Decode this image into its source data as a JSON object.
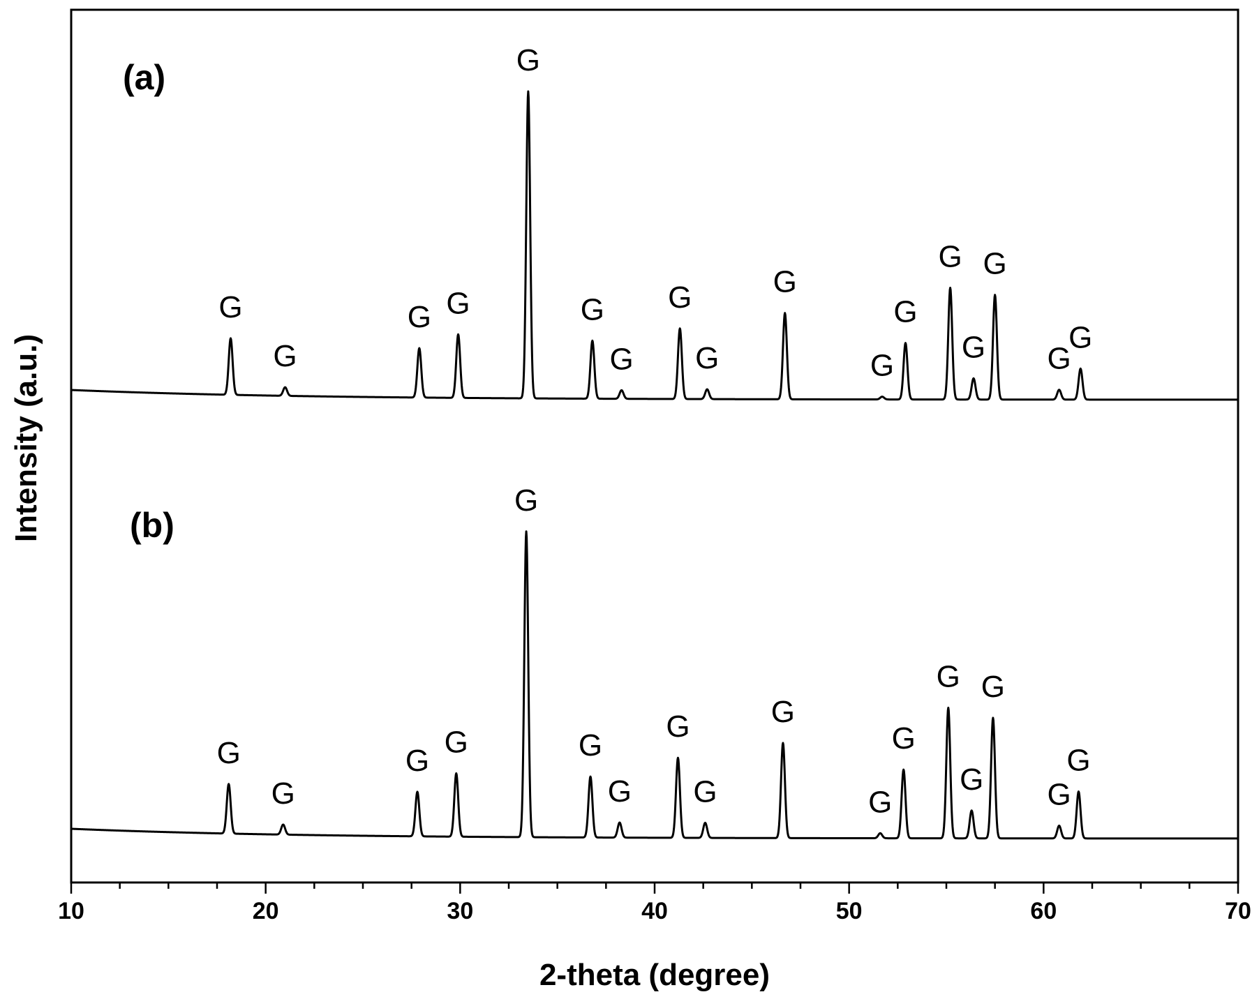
{
  "chart_data": {
    "type": "line",
    "xlabel": "2-theta (degree)",
    "ylabel": "Intensity (a.u.)",
    "xlim": [
      10,
      70
    ],
    "x_ticks": [
      "10",
      "20",
      "30",
      "40",
      "50",
      "60",
      "70"
    ],
    "grid": false,
    "series": [
      {
        "panel_label": "(a)",
        "baseline": 0.0,
        "peaks": [
          {
            "x": 18.2,
            "y": 0.184,
            "label": "G"
          },
          {
            "x": 21.0,
            "y": 0.028,
            "label": "G"
          },
          {
            "x": 27.9,
            "y": 0.161,
            "label": "G"
          },
          {
            "x": 29.9,
            "y": 0.207,
            "label": "G"
          },
          {
            "x": 33.5,
            "y": 1.0,
            "label": "G"
          },
          {
            "x": 36.8,
            "y": 0.189,
            "label": "G"
          },
          {
            "x": 38.3,
            "y": 0.028,
            "label": "G"
          },
          {
            "x": 41.3,
            "y": 0.23,
            "label": "G"
          },
          {
            "x": 42.7,
            "y": 0.032,
            "label": "G"
          },
          {
            "x": 46.7,
            "y": 0.281,
            "label": "G"
          },
          {
            "x": 51.7,
            "y": 0.009,
            "label": "G"
          },
          {
            "x": 52.9,
            "y": 0.184,
            "label": "G"
          },
          {
            "x": 55.2,
            "y": 0.364,
            "label": "G"
          },
          {
            "x": 56.4,
            "y": 0.069,
            "label": "G"
          },
          {
            "x": 57.5,
            "y": 0.341,
            "label": "G"
          },
          {
            "x": 60.8,
            "y": 0.032,
            "label": "G"
          },
          {
            "x": 61.9,
            "y": 0.101,
            "label": "G"
          }
        ]
      },
      {
        "panel_label": "(b)",
        "baseline": 0.0,
        "peaks": [
          {
            "x": 18.1,
            "y": 0.148,
            "label": "G"
          },
          {
            "x": 20.9,
            "y": 0.03,
            "label": "G"
          },
          {
            "x": 27.8,
            "y": 0.133,
            "label": "G"
          },
          {
            "x": 29.8,
            "y": 0.189,
            "label": "G"
          },
          {
            "x": 33.4,
            "y": 0.913,
            "label": "G"
          },
          {
            "x": 36.7,
            "y": 0.182,
            "label": "G"
          },
          {
            "x": 38.2,
            "y": 0.045,
            "label": "G"
          },
          {
            "x": 41.2,
            "y": 0.239,
            "label": "G"
          },
          {
            "x": 42.6,
            "y": 0.045,
            "label": "G"
          },
          {
            "x": 46.6,
            "y": 0.284,
            "label": "G"
          },
          {
            "x": 51.6,
            "y": 0.015,
            "label": "G"
          },
          {
            "x": 52.8,
            "y": 0.205,
            "label": "G"
          },
          {
            "x": 55.1,
            "y": 0.39,
            "label": "G"
          },
          {
            "x": 56.3,
            "y": 0.083,
            "label": "G"
          },
          {
            "x": 57.4,
            "y": 0.36,
            "label": "G"
          },
          {
            "x": 60.8,
            "y": 0.038,
            "label": "G"
          },
          {
            "x": 61.8,
            "y": 0.14,
            "label": "G"
          }
        ]
      }
    ]
  }
}
